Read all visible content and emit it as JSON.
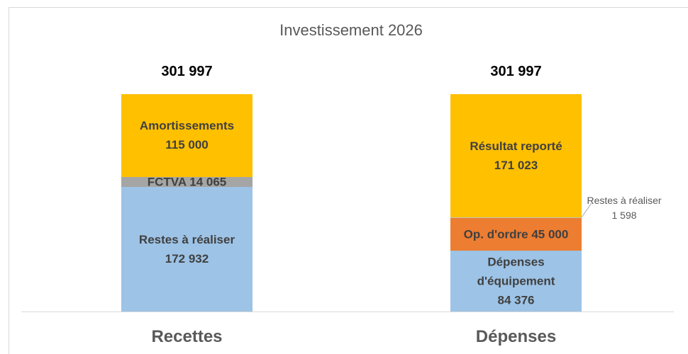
{
  "chart_data": {
    "type": "stacked_bar",
    "title": "Investissement 2026",
    "categories": [
      "Recettes",
      "Dépenses"
    ],
    "totals": [
      301997,
      301997
    ],
    "total_labels": [
      "301 997",
      "301 997"
    ],
    "series": [
      {
        "name": "Restes à réaliser",
        "color": "#9dc3e6",
        "values": [
          172932,
          null
        ],
        "value_labels": [
          "172 932",
          null
        ]
      },
      {
        "name": "FCTVA",
        "color": "#a5a5a5",
        "values": [
          14065,
          null
        ],
        "value_labels": [
          "14 065",
          null
        ]
      },
      {
        "name": "Amortissements",
        "color": "#ffc000",
        "values": [
          115000,
          null
        ],
        "value_labels": [
          "115 000",
          null
        ]
      },
      {
        "name": "Dépenses d'équipement",
        "color": "#9dc3e6",
        "values": [
          null,
          84376
        ],
        "value_labels": [
          null,
          "84 376"
        ]
      },
      {
        "name": "Op. d'ordre",
        "color": "#ed7d31",
        "values": [
          null,
          45000
        ],
        "value_labels": [
          null,
          "45 000"
        ]
      },
      {
        "name": "Restes à réaliser",
        "color": "#bfbfbf",
        "values": [
          null,
          1598
        ],
        "value_labels": [
          null,
          "1 598"
        ]
      },
      {
        "name": "Résultat reporté",
        "color": "#ffc000",
        "values": [
          null,
          171023
        ],
        "value_labels": [
          null,
          "171 023"
        ]
      }
    ]
  }
}
